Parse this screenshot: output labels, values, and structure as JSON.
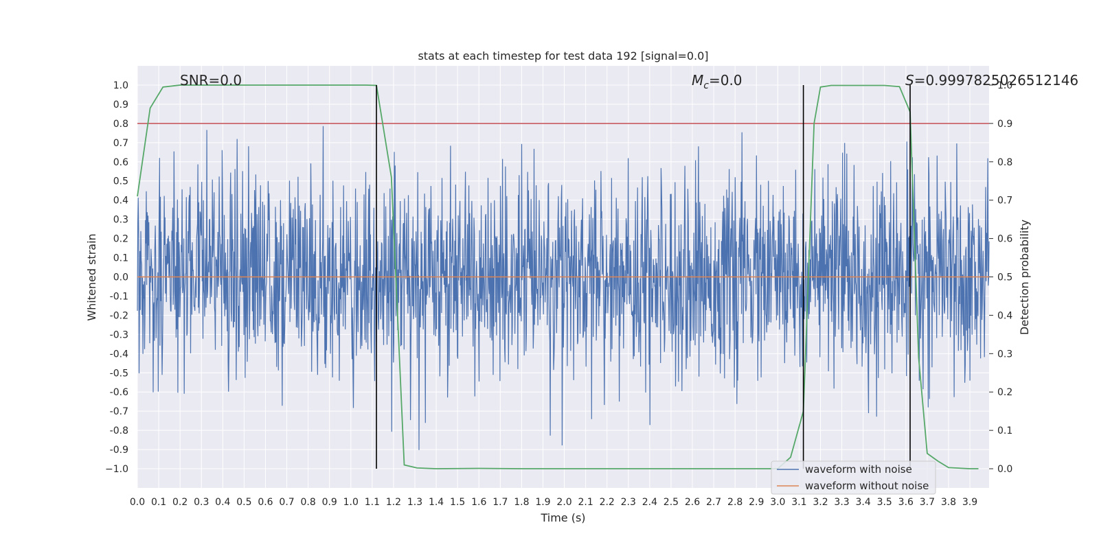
{
  "chart_data": {
    "type": "line",
    "title": "stats at each timestep for test data 192 [signal=0.0]",
    "xlabel": "Time (s)",
    "ylabel": "Whitened strain",
    "y2label": "Detection probability",
    "xlim": [
      0.0,
      3.99
    ],
    "ylim": [
      -1.1,
      1.1
    ],
    "y2lim": [
      -0.05,
      1.05
    ],
    "x_ticks": [
      "0.0",
      "0.1",
      "0.2",
      "0.3",
      "0.4",
      "0.5",
      "0.6",
      "0.7",
      "0.8",
      "0.9",
      "1.0",
      "1.1",
      "1.2",
      "1.3",
      "1.4",
      "1.5",
      "1.6",
      "1.7",
      "1.8",
      "1.9",
      "2.0",
      "2.1",
      "2.2",
      "2.3",
      "2.4",
      "2.5",
      "2.6",
      "2.7",
      "2.8",
      "2.9",
      "3.0",
      "3.1",
      "3.2",
      "3.3",
      "3.4",
      "3.5",
      "3.6",
      "3.7",
      "3.8",
      "3.9"
    ],
    "y_ticks": [
      "1.0",
      "0.9",
      "0.8",
      "0.7",
      "0.6",
      "0.5",
      "0.4",
      "0.3",
      "0.2",
      "0.1",
      "0.0",
      "-0.1",
      "-0.2",
      "-0.3",
      "-0.4",
      "-0.5",
      "-0.6",
      "-0.7",
      "-0.8",
      "-0.9",
      "−1.0"
    ],
    "y2_ticks": [
      "1.0",
      "0.9",
      "0.8",
      "0.7",
      "0.6",
      "0.5",
      "0.4",
      "0.3",
      "0.2",
      "0.1",
      "0.0"
    ],
    "grid": true,
    "legend_placement": "lower-right",
    "annotations": {
      "snr": "SNR=0.0",
      "mc_symbol": "M",
      "mc_sub": "c",
      "mc_value": "=0.0",
      "s_symbol": "S",
      "s_value": "=0.9997825026512146"
    },
    "threshold_line": {
      "y2": 0.9,
      "color": "#c44e52"
    },
    "detection_markers_x": [
      1.12,
      3.12,
      3.62
    ],
    "noise_stats": {
      "n_samples": 2000,
      "spread": 0.25,
      "max_abs": 1.0
    },
    "series": [
      {
        "name": "waveform with noise",
        "color": "#4c72b0",
        "kind": "noise"
      },
      {
        "name": "waveform without noise",
        "color": "#dd8452",
        "x": [
          0.0,
          3.99
        ],
        "y": [
          0.0,
          0.0
        ]
      },
      {
        "color": "#55a868",
        "axis": "right",
        "x": [
          0.0,
          0.06,
          0.12,
          0.2,
          0.3,
          0.5,
          0.8,
          1.0,
          1.07,
          1.12,
          1.19,
          1.25,
          1.31,
          1.4,
          1.6,
          1.8,
          2.0,
          2.4,
          2.8,
          3.0,
          3.06,
          3.12,
          3.17,
          3.2,
          3.25,
          3.35,
          3.5,
          3.57,
          3.62,
          3.66,
          3.7,
          3.75,
          3.8,
          3.9,
          3.94
        ],
        "y": [
          0.71,
          0.94,
          0.995,
          1.0,
          1.0,
          1.0,
          1.0,
          1.0,
          1.0,
          0.999,
          0.76,
          0.01,
          0.002,
          0.0,
          0.001,
          0.0,
          0.0,
          0.0,
          0.0,
          0.0,
          0.03,
          0.15,
          0.9,
          0.995,
          0.999,
          0.999,
          0.999,
          0.996,
          0.93,
          0.29,
          0.04,
          0.02,
          0.003,
          0.0,
          0.0
        ]
      }
    ]
  }
}
